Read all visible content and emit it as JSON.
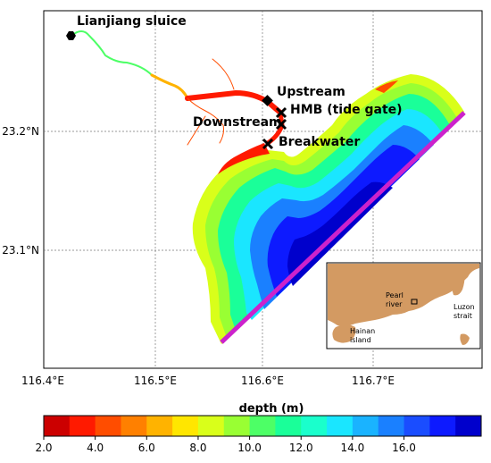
{
  "map": {
    "place_labels": {
      "sluice": "Lianjiang sluice",
      "upstream": "Upstream",
      "hmb": "HMB (tide gate)",
      "downstream": "Downstream",
      "breakwater": "Breakwater"
    },
    "x_ticks": [
      "116.4°E",
      "116.5°E",
      "116.6°E",
      "116.7°E"
    ],
    "y_ticks": [
      "23.2°N",
      "23.1°N"
    ],
    "inset_labels": {
      "pearl": [
        "Pearl",
        "river"
      ],
      "luzon": [
        "Luzon",
        "strait"
      ],
      "hainan": [
        "Hainan",
        "island"
      ]
    }
  },
  "colorbar": {
    "title": "depth (m)",
    "tick_labels": [
      "2.0",
      "4.0",
      "6.0",
      "8.0",
      "10.0",
      "12.0",
      "14.0",
      "16.0"
    ],
    "colors": [
      "#cc0000",
      "#ff1a00",
      "#ff4d00",
      "#ff8000",
      "#ffb300",
      "#ffe600",
      "#d9ff1a",
      "#99ff33",
      "#4dff66",
      "#1aff99",
      "#1affcc",
      "#1ae6ff",
      "#1ab3ff",
      "#1a80ff",
      "#1a4dff",
      "#0d1aff",
      "#0000cc"
    ]
  },
  "styles": {
    "boundary_color": "#cc22cc",
    "marker_color": "#000000",
    "land_color": "#d39a62",
    "sea_color": "#ffffff"
  }
}
